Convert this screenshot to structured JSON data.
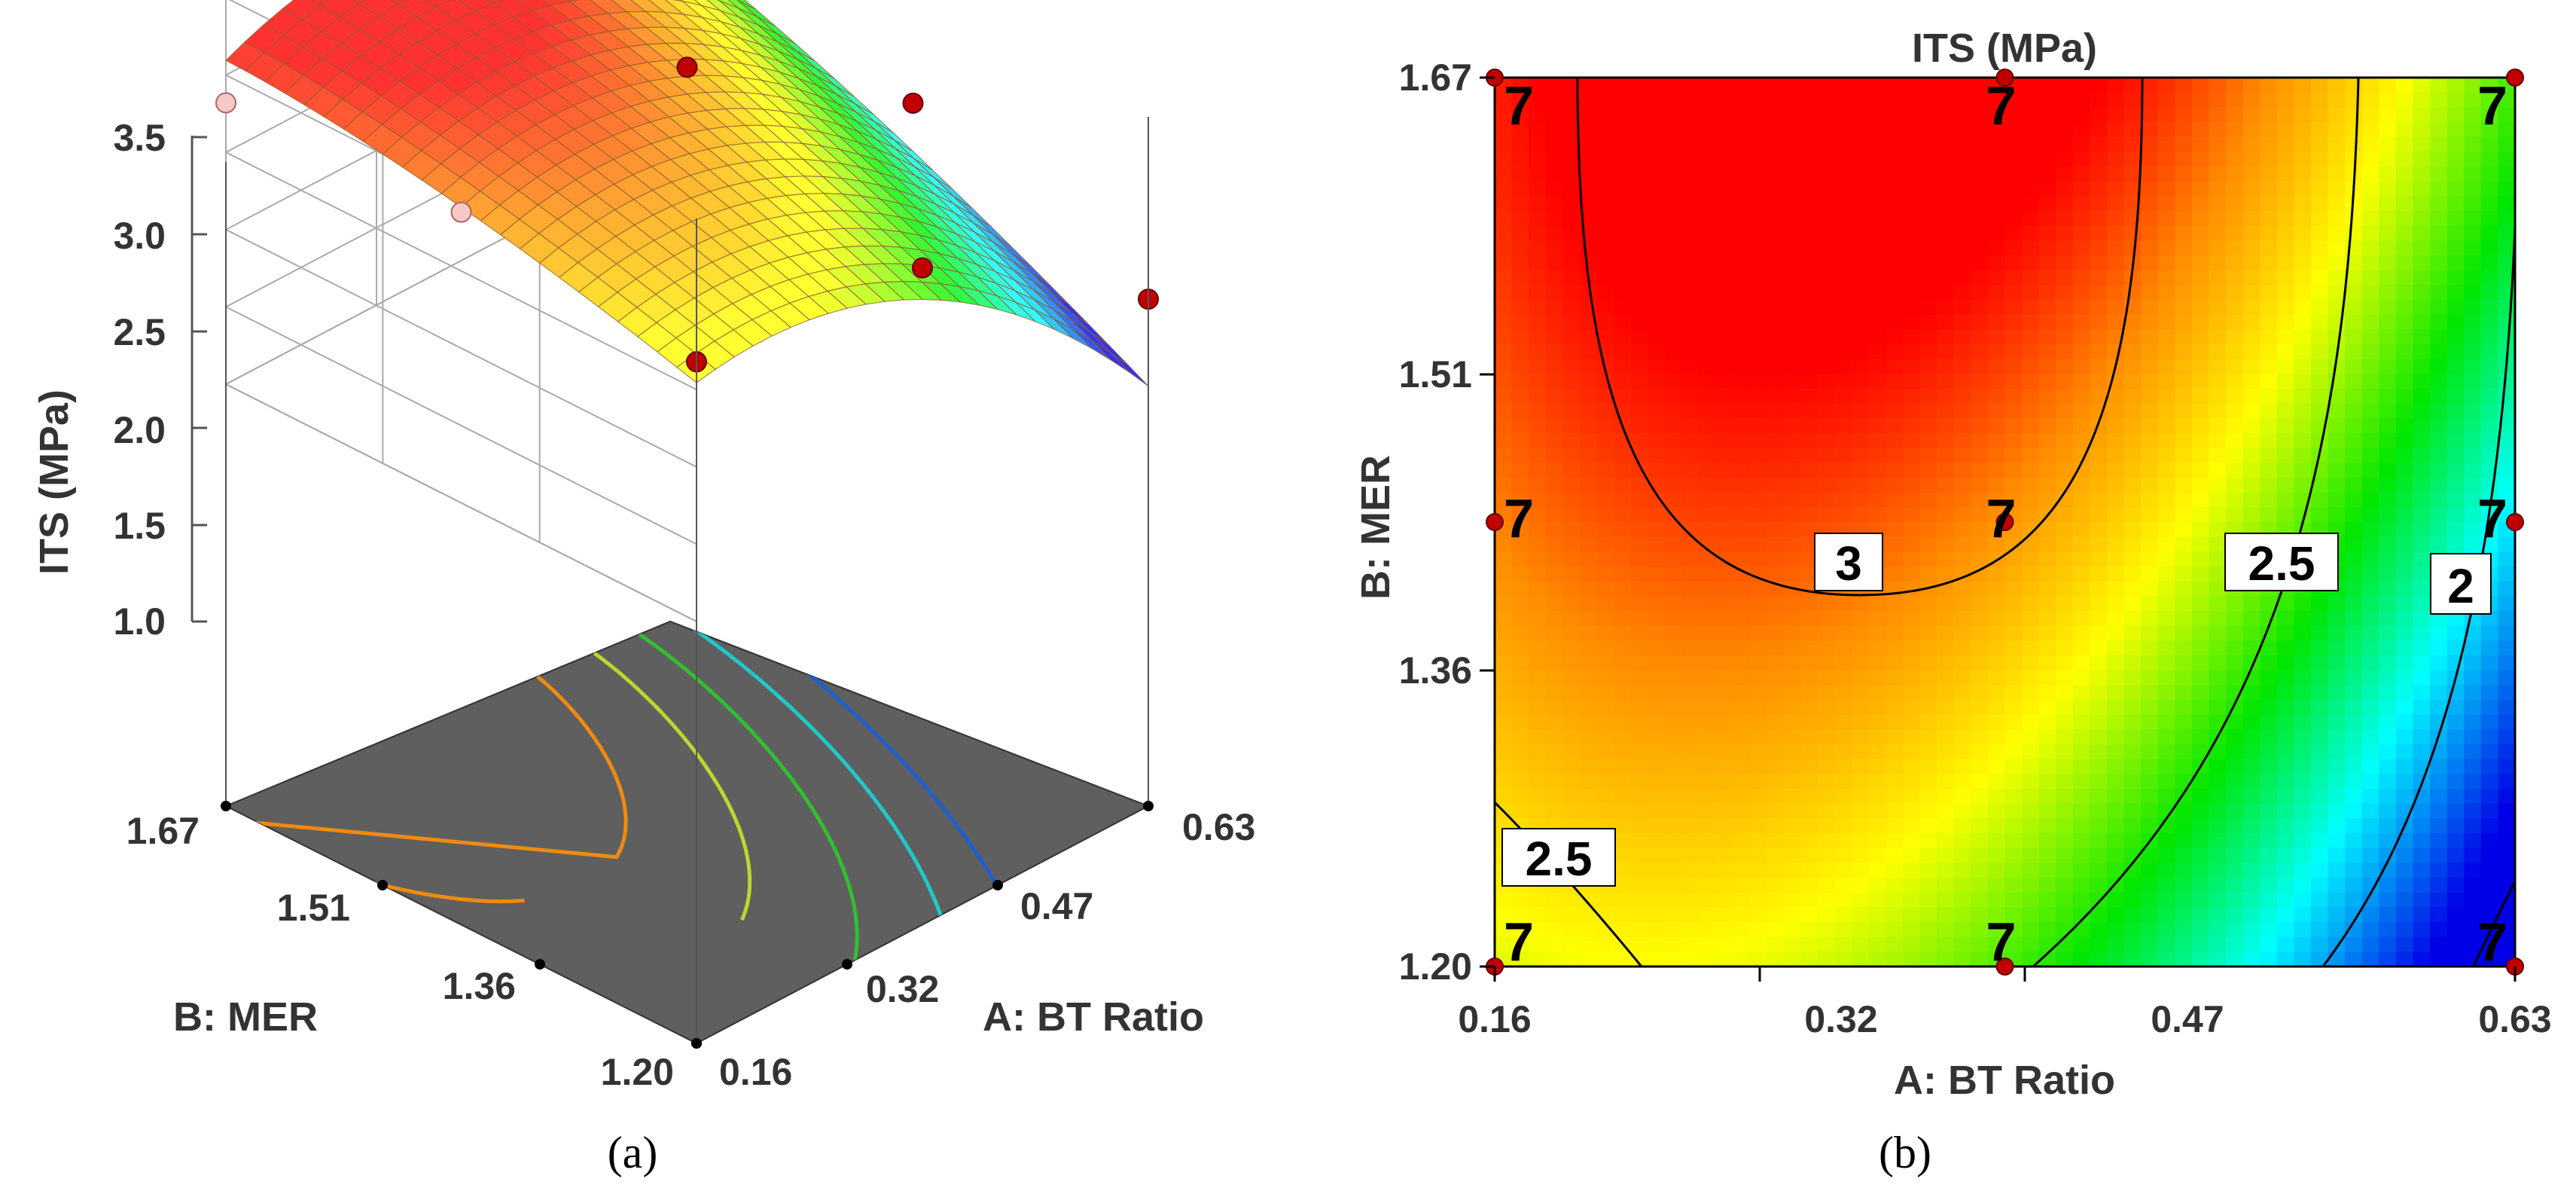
{
  "chart_data": [
    {
      "type": "surface",
      "panel_label": "(a)",
      "title": "",
      "zlabel": "ITS (MPa)",
      "xlabel": "A: BT Ratio",
      "ylabel": "B: MER",
      "zticks": [
        "1.0",
        "1.5",
        "2.0",
        "2.5",
        "3.0",
        "3.5"
      ],
      "zlim": [
        1.0,
        3.5
      ],
      "xticks": [
        "0.16",
        "0.32",
        "0.47",
        "0.63"
      ],
      "yticks": [
        "1.20",
        "1.36",
        "1.51",
        "1.67"
      ],
      "design_points": [
        {
          "A": 0.16,
          "B": 1.67,
          "ITS": 2.82
        },
        {
          "A": 0.16,
          "B": 1.435,
          "ITS": 2.88
        },
        {
          "A": 0.16,
          "B": 1.2,
          "ITS": 2.68
        },
        {
          "A": 0.395,
          "B": 1.67,
          "ITS": 3.2
        },
        {
          "A": 0.395,
          "B": 1.435,
          "ITS": 3.05
        },
        {
          "A": 0.395,
          "B": 1.2,
          "ITS": 2.52
        },
        {
          "A": 0.63,
          "B": 1.67,
          "ITS": 2.1
        },
        {
          "A": 0.63,
          "B": 1.435,
          "ITS": 2.05
        },
        {
          "A": 0.63,
          "B": 1.2,
          "ITS": 1.55
        }
      ],
      "base_contour_levels": [
        2.0,
        2.25,
        2.5,
        2.75,
        3.0
      ]
    },
    {
      "type": "contour",
      "panel_label": "(b)",
      "title": "ITS (MPa)",
      "xlabel": "A: BT Ratio",
      "ylabel": "B: MER",
      "xticks": [
        "0.16",
        "0.32",
        "0.47",
        "0.63"
      ],
      "yticks": [
        "1.20",
        "1.36",
        "1.51",
        "1.67"
      ],
      "xlim": [
        0.16,
        0.63
      ],
      "ylim": [
        1.2,
        1.67
      ],
      "contour_labels": [
        "3",
        "2.5",
        "2",
        "2.5"
      ],
      "replicate_label": "7",
      "design_points": [
        {
          "A": 0.16,
          "B": 1.67,
          "label": "7"
        },
        {
          "A": 0.395,
          "B": 1.67,
          "label": "7"
        },
        {
          "A": 0.63,
          "B": 1.67,
          "label": "7"
        },
        {
          "A": 0.16,
          "B": 1.435,
          "label": "7"
        },
        {
          "A": 0.395,
          "B": 1.435,
          "label": "7"
        },
        {
          "A": 0.63,
          "B": 1.435,
          "label": "7"
        },
        {
          "A": 0.16,
          "B": 1.2,
          "label": "7"
        },
        {
          "A": 0.395,
          "B": 1.2,
          "label": "7"
        },
        {
          "A": 0.63,
          "B": 1.2,
          "label": "7"
        }
      ]
    }
  ]
}
